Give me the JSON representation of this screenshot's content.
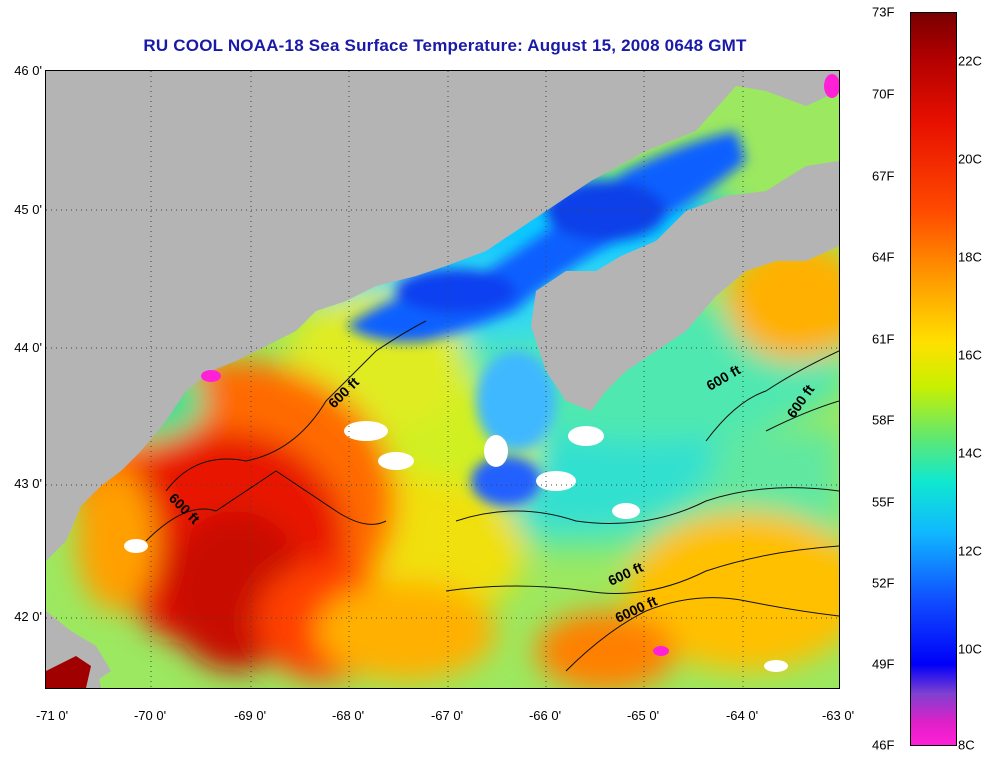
{
  "title": "RU COOL  NOAA-18  Sea Surface Temperature:  August 15, 2008 0648 GMT",
  "latitude_labels": [
    "46 0'",
    "45 0'",
    "44 0'",
    "43 0'",
    "42 0'"
  ],
  "longitude_labels": [
    "-71 0'",
    "-70 0'",
    "-69 0'",
    "-68 0'",
    "-67 0'",
    "-66 0'",
    "-65 0'",
    "-64 0'",
    "-63 0'"
  ],
  "depth_labels": [
    "600 ft",
    "600 ft",
    "600 ft",
    "600 ft",
    "600 ft",
    "6000 ft"
  ],
  "colorbar": {
    "fahrenheit": [
      "73F",
      "70F",
      "67F",
      "64F",
      "61F",
      "58F",
      "55F",
      "52F",
      "49F",
      "46F"
    ],
    "celsius": [
      "22C",
      "20C",
      "18C",
      "16C",
      "14C",
      "12C",
      "10C",
      "8C"
    ]
  },
  "colors": {
    "title": "#1a1aa8",
    "land": "#b4b4b4",
    "warm": "#e81000",
    "cold": "#0000f8",
    "cloud_mask": "#ffffff"
  }
}
